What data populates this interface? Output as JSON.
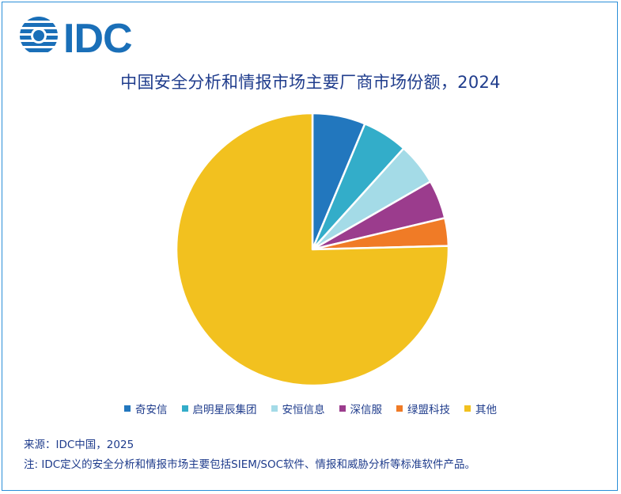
{
  "logo": {
    "text": "IDC"
  },
  "chart_data": {
    "type": "pie",
    "title": "中国安全分析和情报市场主要厂商市场份额，2024",
    "labels": [
      "奇安信",
      "启明星辰集团",
      "安恒信息",
      "深信服",
      "绿盟科技",
      "其他"
    ],
    "values": [
      6.3,
      5.4,
      5.0,
      4.6,
      3.3,
      75.4
    ],
    "colors": [
      "#2277be",
      "#33adc9",
      "#a4dbe7",
      "#9b3c8d",
      "#f07b26",
      "#f2c11f"
    ],
    "legend_position": "bottom"
  },
  "footer": {
    "source": "来源：IDC中国，2025",
    "note": "注: IDC定义的安全分析和情报市场主要包括SIEM/SOC软件、情报和威胁分析等标准软件产品。"
  }
}
